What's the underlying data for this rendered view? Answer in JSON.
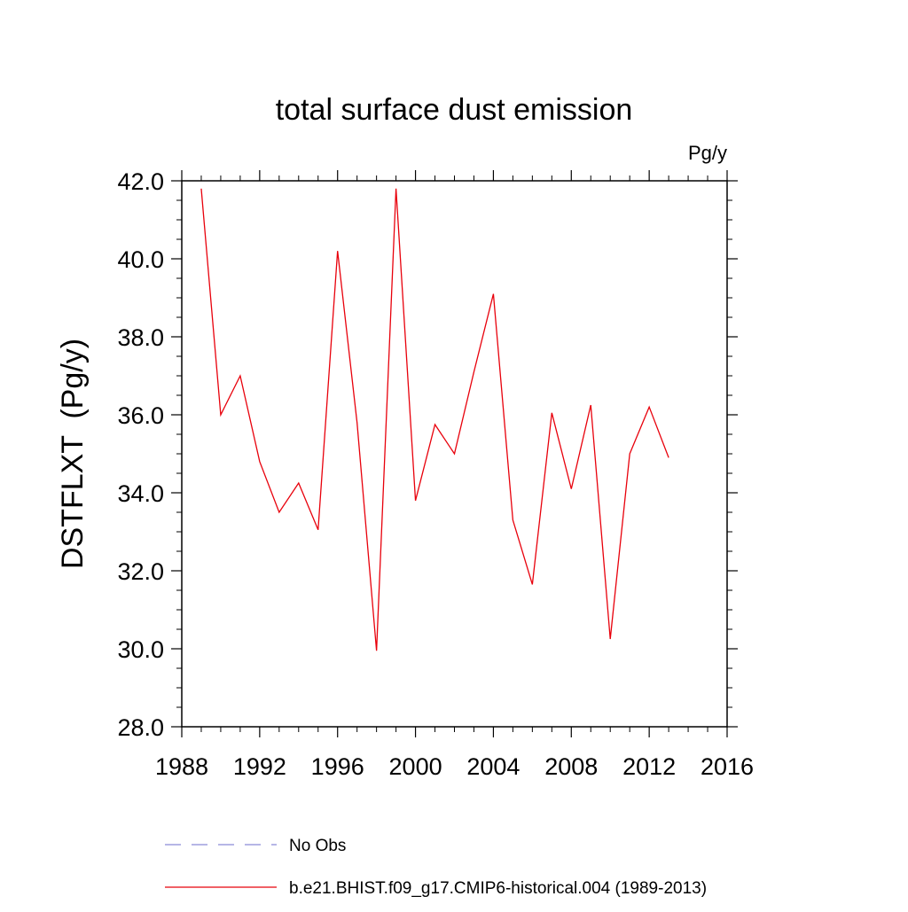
{
  "chart_data": {
    "type": "line",
    "title": "total surface dust emission",
    "units_label": "Pg/y",
    "ylabel": "DSTFLXT  (Pg/y)",
    "xlabel": "",
    "xlim": [
      1988,
      2016
    ],
    "ylim": [
      28.0,
      42.0
    ],
    "x_ticks": [
      1988,
      1992,
      1996,
      2000,
      2004,
      2008,
      2012,
      2016
    ],
    "x_tick_labels": [
      "1988",
      "1992",
      "1996",
      "2000",
      "2004",
      "2008",
      "2012",
      "2016"
    ],
    "y_ticks": [
      28.0,
      30.0,
      32.0,
      34.0,
      36.0,
      38.0,
      40.0,
      42.0
    ],
    "y_tick_labels": [
      "28.0",
      "30.0",
      "32.0",
      "34.0",
      "36.0",
      "38.0",
      "40.0",
      "42.0"
    ],
    "grid": false,
    "legend_position": "bottom",
    "series": [
      {
        "name": "b.e21.BHIST.f09_g17.CMIP6-historical.004 (1989-2013)",
        "color": "#e8000b",
        "style": "solid",
        "x": [
          1989,
          1990,
          1991,
          1992,
          1993,
          1994,
          1995,
          1996,
          1997,
          1998,
          1999,
          2000,
          2001,
          2002,
          2003,
          2004,
          2005,
          2006,
          2007,
          2008,
          2009,
          2010,
          2011,
          2012,
          2013
        ],
        "y": [
          41.8,
          36.0,
          37.0,
          34.8,
          33.5,
          34.25,
          33.05,
          40.2,
          35.8,
          29.95,
          41.8,
          33.8,
          35.75,
          35.0,
          37.1,
          39.1,
          33.3,
          31.65,
          36.05,
          34.1,
          36.25,
          30.25,
          35.0,
          36.2,
          34.9
        ]
      }
    ],
    "legend": [
      {
        "label": "No Obs",
        "color": "#8a8ad6",
        "style": "dashed"
      },
      {
        "label": "b.e21.BHIST.f09_g17.CMIP6-historical.004 (1989-2013)",
        "color": "#e8000b",
        "style": "solid"
      }
    ]
  }
}
